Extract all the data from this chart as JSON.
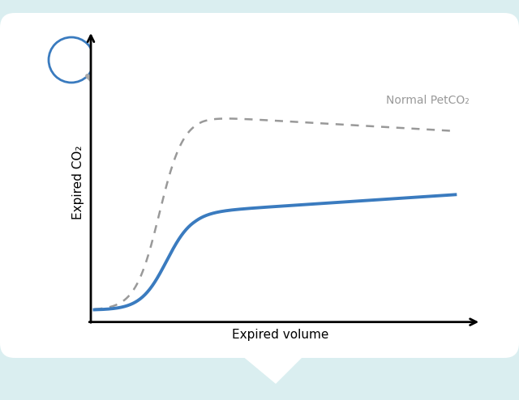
{
  "background_color": "#daeef0",
  "panel_color": "#ffffff",
  "xlabel": "Expired volume",
  "ylabel": "Expired CO₂",
  "normal_label": "Normal PetCO₂",
  "normal_color": "#999999",
  "actual_color": "#3a7bbf",
  "xlabel_fontsize": 11,
  "ylabel_fontsize": 11,
  "label_fontsize": 10,
  "mag_circle_color": "#3a7bbf",
  "mag_handle_color": "#aaaaaa"
}
